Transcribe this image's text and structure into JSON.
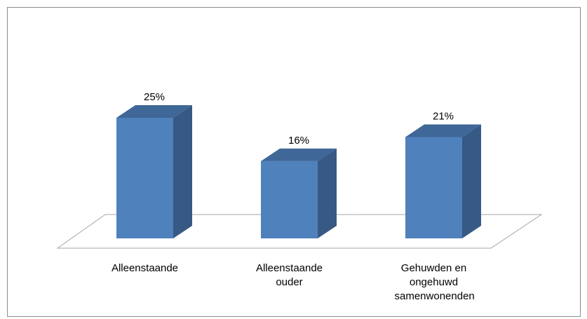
{
  "chart_data": {
    "type": "bar3d",
    "categories": [
      "Alleenstaande",
      "Alleenstaande ouder",
      "Gehuwden en ongehuwd samenwonenden"
    ],
    "values": [
      25,
      16,
      21
    ],
    "value_labels": [
      "25%",
      "16%",
      "21%"
    ],
    "color": "#4f81bd"
  }
}
